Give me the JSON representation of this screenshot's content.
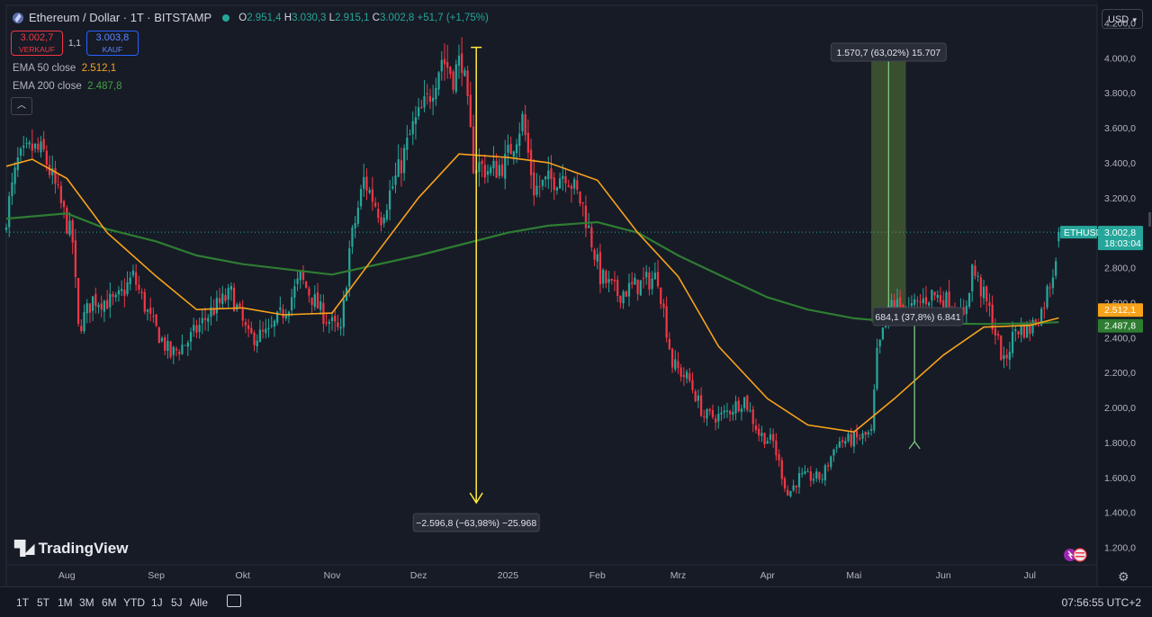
{
  "header": {
    "symbol": "Ethereum / Dollar · 1T · BITSTAMP",
    "o_label": "O",
    "o_val": "2.951,4",
    "h_label": "H",
    "h_val": "3.030,3",
    "l_label": "L",
    "l_val": "2.915,1",
    "c_label": "C",
    "c_val": "3.002,8",
    "change": "+51,7 (+1,75%)"
  },
  "sell": {
    "price": "3.002,7",
    "label": "VERKAUF"
  },
  "spread": "1,1",
  "buy": {
    "price": "3.003,8",
    "label": "KAUF"
  },
  "ema50": {
    "label": "EMA 50 close",
    "value": "2.512,1",
    "color": "#f7a21b"
  },
  "ema200": {
    "label": "EMA 200 close",
    "value": "2.487,8",
    "color": "#2e7d32"
  },
  "currency": "USD",
  "logo": "TradingView",
  "ranges": [
    "1T",
    "5T",
    "1M",
    "3M",
    "6M",
    "YTD",
    "1J",
    "5J",
    "Alle"
  ],
  "clock": "07:56:55 UTC+2",
  "chart_data": {
    "type": "candlestick",
    "symbol_tag": "ETHUSD",
    "last_price": "3.002,8",
    "countdown": "18:03:04",
    "ylim": [
      1100,
      4300
    ],
    "y_ticks": [
      1200,
      1400,
      1600,
      1800,
      2000,
      2200,
      2400,
      2600,
      2800,
      3000,
      3200,
      3400,
      3600,
      3800,
      4000,
      4200
    ],
    "y_tick_labels": [
      "1.200,0",
      "1.400,0",
      "1.600,0",
      "1.800,0",
      "2.000,0",
      "2.200,0",
      "2.400,0",
      "2.600,0",
      "2.800,0",
      "3.000,0",
      "3.200,0",
      "3.400,0",
      "3.600,0",
      "3.800,0",
      "4.000,0",
      "4.200,0"
    ],
    "x_start": "2024-07-11",
    "x_end": "2025-07-24",
    "x_ticks": [
      {
        "date": "2024-08-01",
        "label": "Aug"
      },
      {
        "date": "2024-09-01",
        "label": "Sep"
      },
      {
        "date": "2024-10-01",
        "label": "Okt"
      },
      {
        "date": "2024-11-01",
        "label": "Nov"
      },
      {
        "date": "2024-12-01",
        "label": "Dez"
      },
      {
        "date": "2025-01-01",
        "label": "2025"
      },
      {
        "date": "2025-02-01",
        "label": "Feb"
      },
      {
        "date": "2025-03-01",
        "label": "Mrz"
      },
      {
        "date": "2025-04-01",
        "label": "Apr"
      },
      {
        "date": "2025-05-01",
        "label": "Mai"
      },
      {
        "date": "2025-06-01",
        "label": "Jun"
      },
      {
        "date": "2025-07-01",
        "label": "Jul"
      }
    ],
    "price_path": [
      [
        "2024-07-11",
        3100
      ],
      [
        "2024-07-15",
        3400
      ],
      [
        "2024-07-20",
        3480
      ],
      [
        "2024-07-24",
        3450
      ],
      [
        "2024-07-28",
        3260
      ],
      [
        "2024-08-03",
        2950
      ],
      [
        "2024-08-05",
        2450
      ],
      [
        "2024-08-10",
        2620
      ],
      [
        "2024-08-18",
        2600
      ],
      [
        "2024-08-24",
        2750
      ],
      [
        "2024-08-30",
        2500
      ],
      [
        "2024-09-06",
        2300
      ],
      [
        "2024-09-12",
        2380
      ],
      [
        "2024-09-20",
        2550
      ],
      [
        "2024-09-27",
        2650
      ],
      [
        "2024-10-03",
        2400
      ],
      [
        "2024-10-10",
        2420
      ],
      [
        "2024-10-17",
        2600
      ],
      [
        "2024-10-21",
        2740
      ],
      [
        "2024-10-28",
        2550
      ],
      [
        "2024-11-04",
        2420
      ],
      [
        "2024-11-07",
        2900
      ],
      [
        "2024-11-12",
        3300
      ],
      [
        "2024-11-18",
        3100
      ],
      [
        "2024-11-24",
        3350
      ],
      [
        "2024-11-29",
        3600
      ],
      [
        "2024-12-04",
        3750
      ],
      [
        "2024-12-09",
        4000
      ],
      [
        "2024-12-13",
        3900
      ],
      [
        "2024-12-16",
        4000
      ],
      [
        "2024-12-20",
        3400
      ],
      [
        "2024-12-26",
        3350
      ],
      [
        "2024-12-31",
        3400
      ],
      [
        "2025-01-06",
        3650
      ],
      [
        "2025-01-10",
        3250
      ],
      [
        "2025-01-16",
        3300
      ],
      [
        "2025-01-21",
        3350
      ],
      [
        "2025-01-27",
        3150
      ],
      [
        "2025-02-02",
        2750
      ],
      [
        "2025-02-08",
        2650
      ],
      [
        "2025-02-15",
        2700
      ],
      [
        "2025-02-22",
        2750
      ],
      [
        "2025-02-27",
        2250
      ],
      [
        "2025-03-05",
        2150
      ],
      [
        "2025-03-10",
        1950
      ],
      [
        "2025-03-16",
        1950
      ],
      [
        "2025-03-24",
        2050
      ],
      [
        "2025-03-29",
        1850
      ],
      [
        "2025-04-03",
        1800
      ],
      [
        "2025-04-08",
        1500
      ],
      [
        "2025-04-12",
        1600
      ],
      [
        "2025-04-20",
        1600
      ],
      [
        "2025-04-25",
        1800
      ],
      [
        "2025-05-02",
        1820
      ],
      [
        "2025-05-07",
        1850
      ],
      [
        "2025-05-09",
        2300
      ],
      [
        "2025-05-14",
        2600
      ],
      [
        "2025-05-20",
        2550
      ],
      [
        "2025-05-28",
        2650
      ],
      [
        "2025-06-03",
        2600
      ],
      [
        "2025-06-08",
        2500
      ],
      [
        "2025-06-11",
        2800
      ],
      [
        "2025-06-17",
        2550
      ],
      [
        "2025-06-22",
        2250
      ],
      [
        "2025-06-26",
        2450
      ],
      [
        "2025-07-01",
        2450
      ],
      [
        "2025-07-05",
        2550
      ],
      [
        "2025-07-09",
        2780
      ],
      [
        "2025-07-11",
        3002.8
      ]
    ],
    "ema50_path": [
      [
        "2024-07-11",
        3380
      ],
      [
        "2024-07-20",
        3420
      ],
      [
        "2024-08-01",
        3310
      ],
      [
        "2024-08-15",
        3000
      ],
      [
        "2024-09-01",
        2750
      ],
      [
        "2024-09-15",
        2560
      ],
      [
        "2024-10-01",
        2570
      ],
      [
        "2024-10-15",
        2530
      ],
      [
        "2024-11-01",
        2540
      ],
      [
        "2024-11-15",
        2850
      ],
      [
        "2024-12-01",
        3200
      ],
      [
        "2024-12-15",
        3450
      ],
      [
        "2025-01-01",
        3430
      ],
      [
        "2025-01-15",
        3400
      ],
      [
        "2025-02-01",
        3300
      ],
      [
        "2025-02-15",
        3000
      ],
      [
        "2025-03-01",
        2750
      ],
      [
        "2025-03-15",
        2350
      ],
      [
        "2025-04-01",
        2050
      ],
      [
        "2025-04-15",
        1900
      ],
      [
        "2025-05-01",
        1860
      ],
      [
        "2025-05-15",
        2050
      ],
      [
        "2025-06-01",
        2300
      ],
      [
        "2025-06-15",
        2460
      ],
      [
        "2025-07-01",
        2470
      ],
      [
        "2025-07-11",
        2512.1
      ]
    ],
    "ema200_path": [
      [
        "2024-07-11",
        3080
      ],
      [
        "2024-08-01",
        3110
      ],
      [
        "2024-08-15",
        3020
      ],
      [
        "2024-09-01",
        2950
      ],
      [
        "2024-09-15",
        2870
      ],
      [
        "2024-10-01",
        2820
      ],
      [
        "2024-11-01",
        2760
      ],
      [
        "2024-12-01",
        2870
      ],
      [
        "2025-01-01",
        3000
      ],
      [
        "2025-01-15",
        3040
      ],
      [
        "2025-02-01",
        3060
      ],
      [
        "2025-02-15",
        3000
      ],
      [
        "2025-03-01",
        2870
      ],
      [
        "2025-03-15",
        2760
      ],
      [
        "2025-04-01",
        2630
      ],
      [
        "2025-04-15",
        2560
      ],
      [
        "2025-05-01",
        2510
      ],
      [
        "2025-05-15",
        2490
      ],
      [
        "2025-06-01",
        2480
      ],
      [
        "2025-06-15",
        2478
      ],
      [
        "2025-07-01",
        2481
      ],
      [
        "2025-07-11",
        2487.8
      ]
    ],
    "annotations": [
      {
        "date": "2024-12-21",
        "from": 4060,
        "to": 1455,
        "label": "−2.596,8 (−63,98%) −25.968",
        "color": "#ffeb3b"
      },
      {
        "date_start": "2025-05-07",
        "date_end": "2025-05-19",
        "from": 2490,
        "to": 4060,
        "label": "1.570,7 (63,02%) 15.707",
        "color": "#66bb6a"
      },
      {
        "date_start": "2025-05-20",
        "date_end": "2025-05-24",
        "from": 1805,
        "to": 2490,
        "label": "684,1 (37,8%) 6.841",
        "color": "#66bb6a"
      }
    ]
  }
}
